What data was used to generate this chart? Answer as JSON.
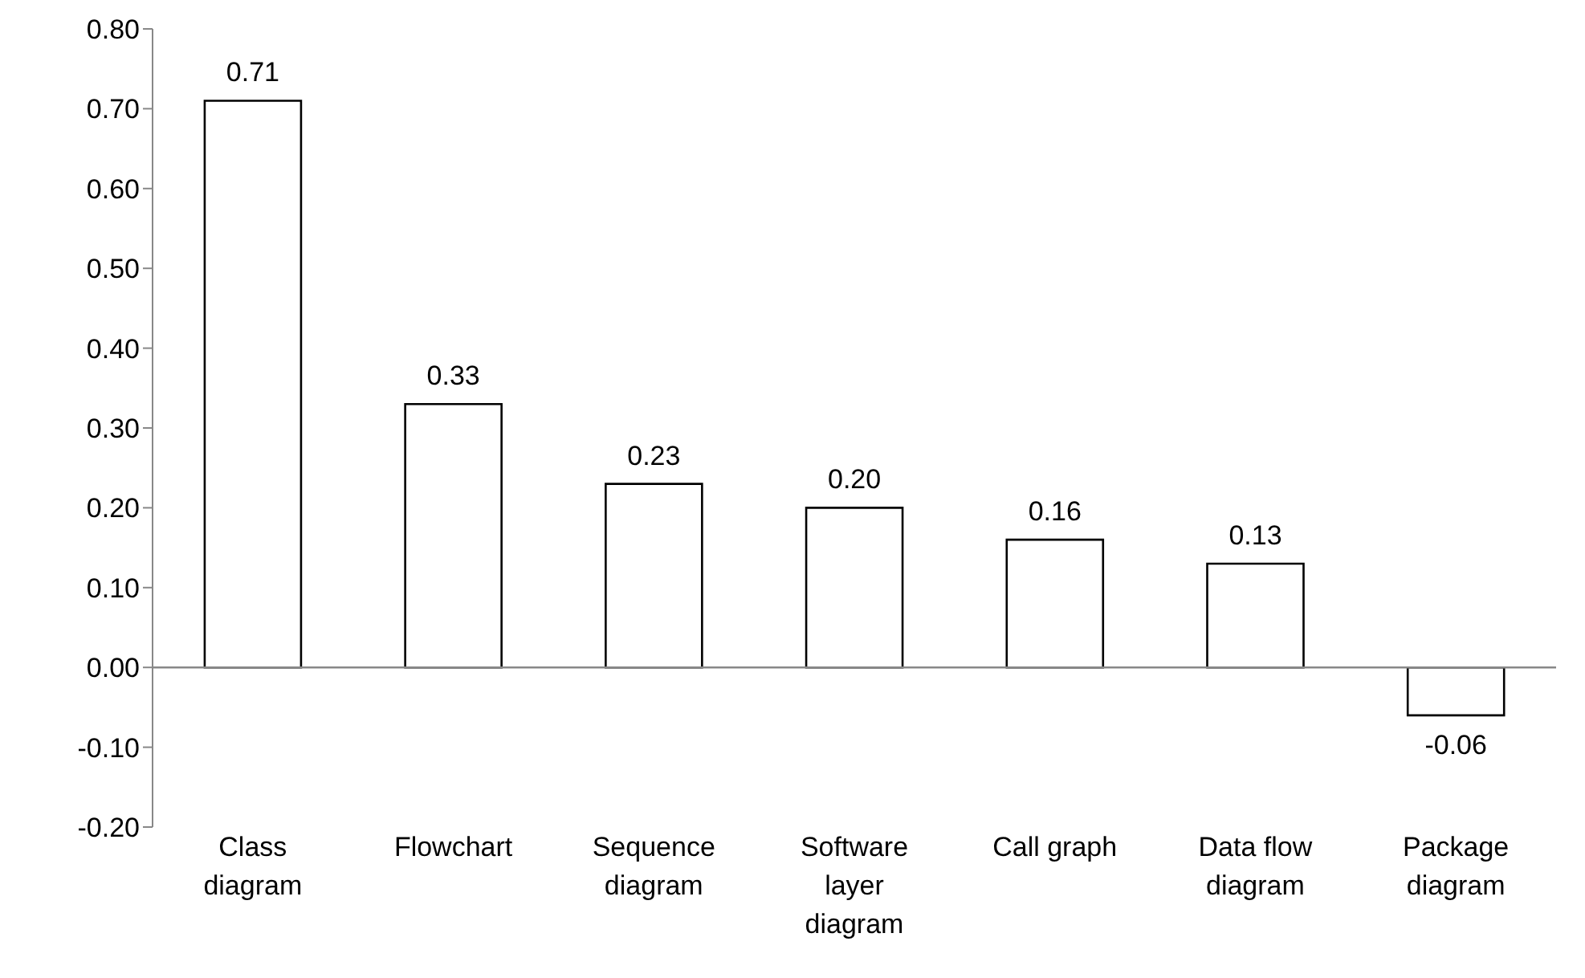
{
  "chart_data": {
    "type": "bar",
    "categories": [
      "Class diagram",
      "Flowchart",
      "Sequence diagram",
      "Software layer diagram",
      "Call graph",
      "Data flow diagram",
      "Package diagram"
    ],
    "values": [
      0.71,
      0.33,
      0.23,
      0.2,
      0.16,
      0.13,
      -0.06
    ],
    "value_labels": [
      "0.71",
      "0.33",
      "0.23",
      "0.20",
      "0.16",
      "0.13",
      "-0.06"
    ],
    "color": "#ffffff",
    "ylim": [
      -0.2,
      0.8
    ],
    "yticks": [
      {
        "value": -0.2,
        "label": "-0.20"
      },
      {
        "value": -0.1,
        "label": "-0.10"
      },
      {
        "value": 0,
        "label": "0.00"
      },
      {
        "value": 0.1,
        "label": "0.10"
      },
      {
        "value": 0.2,
        "label": "0.20"
      },
      {
        "value": 0.3,
        "label": "0.30"
      },
      {
        "value": 0.4,
        "label": "0.40"
      },
      {
        "value": 0.5,
        "label": "0.50"
      },
      {
        "value": 0.6,
        "label": "0.60"
      },
      {
        "value": 0.7,
        "label": "0.70"
      },
      {
        "value": 0.8,
        "label": "0.80"
      }
    ],
    "legend": false
  }
}
